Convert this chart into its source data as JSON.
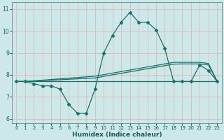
{
  "xlabel": "Humidex (Indice chaleur)",
  "bg_color": "#cce8e8",
  "grid_color": "#b0d4d4",
  "line_color": "#1a6e6a",
  "xlim": [
    -0.5,
    23.5
  ],
  "ylim": [
    5.8,
    11.3
  ],
  "xticks": [
    0,
    1,
    2,
    3,
    4,
    5,
    6,
    7,
    8,
    9,
    10,
    11,
    12,
    13,
    14,
    15,
    16,
    17,
    18,
    19,
    20,
    21,
    22,
    23
  ],
  "yticks": [
    6,
    7,
    8,
    9,
    10,
    11
  ],
  "main_y": [
    7.7,
    7.7,
    7.6,
    7.5,
    7.5,
    7.35,
    6.65,
    6.25,
    6.25,
    7.35,
    9.0,
    9.8,
    10.4,
    10.85,
    10.4,
    10.4,
    10.05,
    9.2,
    7.7,
    7.7,
    7.7,
    8.45,
    8.2,
    7.7
  ],
  "flat_y": [
    7.7,
    7.7,
    7.7,
    7.7,
    7.7,
    7.7,
    7.7,
    7.7,
    7.7,
    7.7,
    7.7,
    7.7,
    7.7,
    7.7,
    7.7,
    7.7,
    7.7,
    7.7,
    7.7,
    7.7,
    7.7,
    7.7,
    7.7,
    7.7
  ],
  "trend1_y": [
    7.7,
    7.7,
    7.72,
    7.74,
    7.76,
    7.78,
    7.8,
    7.82,
    7.84,
    7.86,
    7.93,
    8.0,
    8.07,
    8.14,
    8.21,
    8.28,
    8.35,
    8.42,
    8.49,
    8.5,
    8.5,
    8.5,
    8.45,
    7.7
  ],
  "trend2_y": [
    7.7,
    7.7,
    7.73,
    7.76,
    7.79,
    7.82,
    7.85,
    7.88,
    7.91,
    7.94,
    8.01,
    8.08,
    8.15,
    8.22,
    8.29,
    8.36,
    8.43,
    8.5,
    8.57,
    8.57,
    8.57,
    8.57,
    8.52,
    7.7
  ],
  "marker_style": "D",
  "marker_size": 2.5,
  "linewidth": 0.9
}
